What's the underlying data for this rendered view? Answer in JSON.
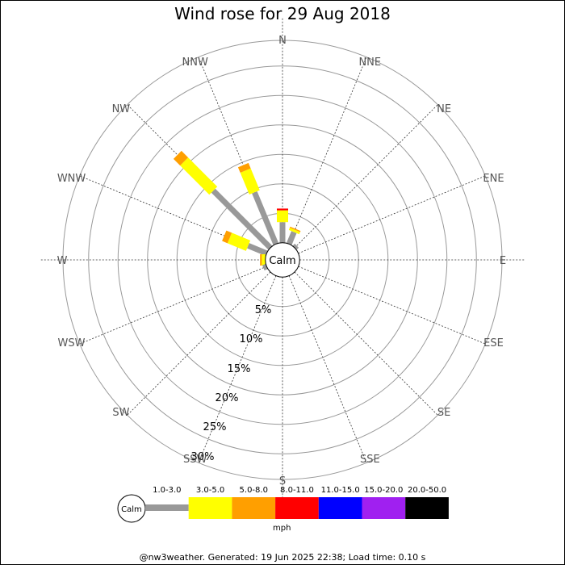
{
  "chart_data": {
    "type": "windrose",
    "title": "Wind rose for 29 Aug 2018",
    "calm_label": "Calm",
    "directions": [
      "N",
      "NNE",
      "NE",
      "ENE",
      "E",
      "ESE",
      "SE",
      "SSE",
      "S",
      "SSW",
      "SW",
      "WSW",
      "W",
      "WNW",
      "NW",
      "NNW"
    ],
    "ring_labels": [
      "5%",
      "10%",
      "15%",
      "20%",
      "25%",
      "30%"
    ],
    "ring_values": [
      5,
      10,
      15,
      20,
      25,
      30
    ],
    "speed_bins": [
      {
        "label": "1.0-3.0",
        "color": "#999999"
      },
      {
        "label": "3.0-5.0",
        "color": "#ffff00"
      },
      {
        "label": "5.0-8.0",
        "color": "#ff9f00"
      },
      {
        "label": "8.0-11.0",
        "color": "#ff0000"
      },
      {
        "label": "11.0-15.0",
        "color": "#0000ff"
      },
      {
        "label": "15.0-20.0",
        "color": "#a020f0"
      },
      {
        "label": "20.0-50.0",
        "color": "#000000"
      }
    ],
    "unit": "mph",
    "calm_radius_pct": 2.5,
    "series": [
      {
        "direction": "N",
        "segments": [
          [
            "1.0-3.0",
            3.5
          ],
          [
            "3.0-5.0",
            2.0
          ],
          [
            "8.0-11.0",
            0.3
          ]
        ]
      },
      {
        "direction": "NNE",
        "segments": [
          [
            "1.0-3.0",
            2.2
          ],
          [
            "3.0-5.0",
            0.4
          ],
          [
            "5.0-8.0",
            0.2
          ]
        ]
      },
      {
        "direction": "NE",
        "segments": [
          [
            "1.0-3.0",
            0.5
          ]
        ]
      },
      {
        "direction": "NNW",
        "segments": [
          [
            "1.0-3.0",
            9.5
          ],
          [
            "3.0-5.0",
            4.0
          ],
          [
            "5.0-8.0",
            1.0
          ]
        ]
      },
      {
        "direction": "NW",
        "segments": [
          [
            "1.0-3.0",
            13.7
          ],
          [
            "3.0-5.0",
            7.0
          ],
          [
            "5.0-8.0",
            1.6
          ]
        ]
      },
      {
        "direction": "WNW",
        "segments": [
          [
            "1.0-3.0",
            3.4
          ],
          [
            "3.0-5.0",
            3.4
          ],
          [
            "5.0-8.0",
            1.0
          ]
        ]
      },
      {
        "direction": "W",
        "segments": [
          [
            "3.0-5.0",
            0.6
          ],
          [
            "5.0-8.0",
            0.3
          ]
        ]
      },
      {
        "direction": "WSW",
        "segments": [
          [
            "1.0-3.0",
            0.6
          ]
        ]
      }
    ]
  },
  "footer": "@nw3weather. Generated: 19 Jun 2025 22:38; Load time: 0.10 s"
}
